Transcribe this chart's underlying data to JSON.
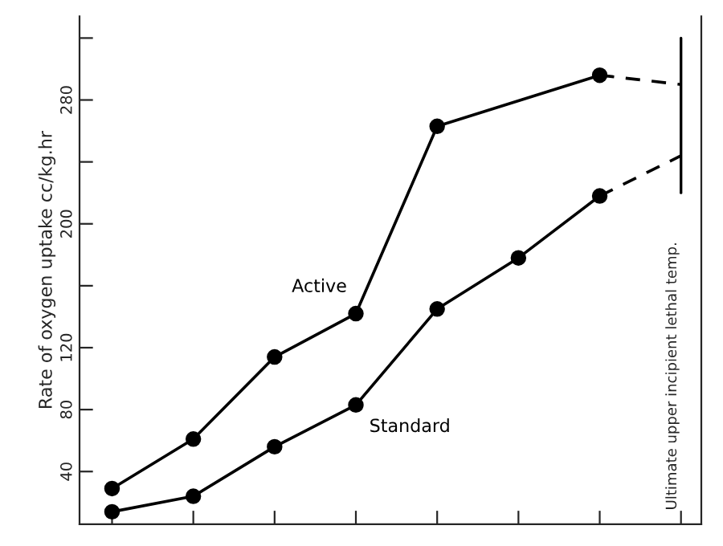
{
  "chart_data": {
    "type": "line",
    "ylabel": "Rate of oxygen uptake cc/kg.hr",
    "categories": [
      null,
      null,
      null,
      null,
      null,
      null,
      null,
      null
    ],
    "series": [
      {
        "name": "Active",
        "color": "#000000",
        "marker": "circle",
        "line_style": "solid",
        "values": [
          29,
          61,
          114,
          142,
          263,
          null,
          296,
          null
        ]
      },
      {
        "color": "#000000",
        "marker": "none",
        "line_style": "dashed",
        "values": [
          null,
          null,
          null,
          null,
          null,
          null,
          296,
          290
        ]
      },
      {
        "name": "Standard",
        "color": "#000000",
        "marker": "circle",
        "line_style": "solid",
        "values": [
          14,
          24,
          56,
          83,
          145,
          178,
          218,
          null
        ]
      },
      {
        "color": "#000000",
        "marker": "none",
        "line_style": "dashed",
        "values": [
          null,
          null,
          null,
          null,
          null,
          null,
          218,
          244
        ]
      }
    ],
    "ylim": [
      6,
      334
    ],
    "yticks": [
      40,
      80,
      120,
      {
        "value": 160,
        "label": null
      },
      200,
      {
        "value": 240,
        "label": null
      },
      280,
      {
        "value": 320,
        "label": null
      }
    ],
    "tick_labels": "y",
    "grid": false,
    "legend": false,
    "annotations": [
      "Ultimate upper incipient lethal temp."
    ]
  }
}
